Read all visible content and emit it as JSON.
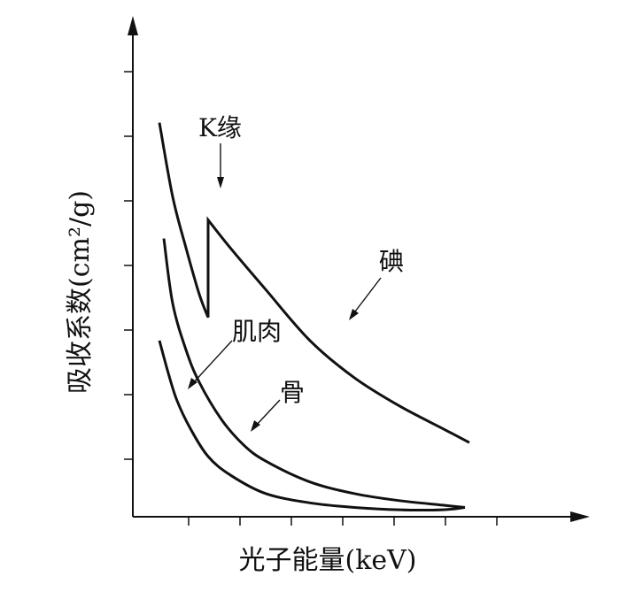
{
  "chart_data": {
    "type": "line",
    "title": "",
    "xlabel": "光子能量(keV)",
    "ylabel": "吸收系数(cm²/g)",
    "xlim": [
      0,
      10
    ],
    "ylim": [
      0,
      10
    ],
    "x_ticks": 7,
    "y_ticks": 7,
    "grid": false,
    "legend": "none",
    "series": [
      {
        "name": "碘",
        "x": [
          0.6,
          0.9,
          1.2,
          1.5,
          1.7,
          1.7,
          2.2,
          3.0,
          4.0,
          5.0,
          6.0,
          7.0,
          7.6
        ],
        "y": [
          8.5,
          6.9,
          5.8,
          4.8,
          4.3,
          6.4,
          5.8,
          4.9,
          3.8,
          3.0,
          2.4,
          1.9,
          1.6
        ]
      },
      {
        "name": "肌肉",
        "x": [
          0.6,
          0.8,
          1.0,
          1.3,
          1.7,
          2.2,
          3.0,
          4.0,
          5.0,
          6.0,
          7.0,
          7.5
        ],
        "y": [
          3.8,
          3.1,
          2.5,
          1.9,
          1.3,
          0.9,
          0.5,
          0.3,
          0.2,
          0.15,
          0.15,
          0.2
        ]
      },
      {
        "name": "骨",
        "x": [
          0.7,
          0.9,
          1.2,
          1.5,
          2.0,
          2.5,
          3.0,
          4.0,
          5.0,
          6.0,
          7.0,
          7.5
        ],
        "y": [
          6.0,
          4.6,
          3.6,
          2.9,
          2.1,
          1.55,
          1.2,
          0.75,
          0.5,
          0.35,
          0.25,
          0.2
        ]
      }
    ],
    "annotations": [
      {
        "text": "K缘",
        "target_series": "碘"
      },
      {
        "text": "碘",
        "target_series": "碘"
      },
      {
        "text": "肌肉",
        "target_series": "肌肉"
      },
      {
        "text": "骨",
        "target_series": "骨"
      }
    ]
  }
}
